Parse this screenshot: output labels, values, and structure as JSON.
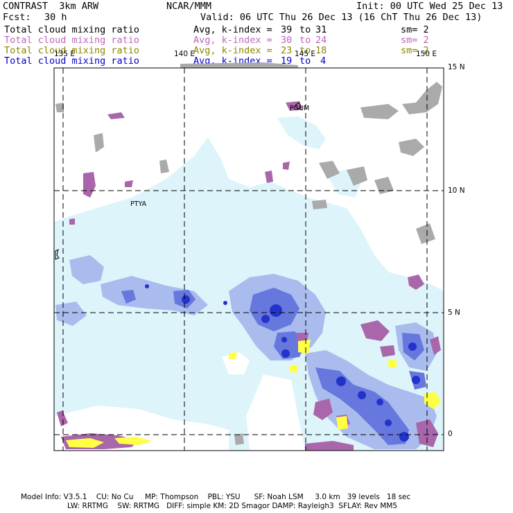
{
  "header": {
    "title": "CONTRAST  3km ARW",
    "org": "NCAR/MMM",
    "init": "Init: 00 UTC Wed 25 Dec 13",
    "fcst_label": "Fcst:",
    "fcst_value": "30 h",
    "valid": "Valid: 06 UTC Thu 26 Dec 13 (16 ChT Thu 26 Dec 13)"
  },
  "legend": [
    {
      "field": "Total cloud mixing ratio",
      "stat": "Avg, k-index =",
      "from": "39",
      "to_word": "to",
      "to": "31",
      "sm": "sm= 2",
      "color": "#000000"
    },
    {
      "field": "Total cloud mixing ratio",
      "stat": "Avg, k-index =",
      "from": "30",
      "to_word": "to",
      "to": "24",
      "sm": "sm= 2",
      "color": "#bb66bb"
    },
    {
      "field": "Total cloud mixing ratio",
      "stat": "Avg, k-index =",
      "from": "23",
      "to_word": "to",
      "to": "18",
      "sm": "sm= 2",
      "color": "#888800"
    },
    {
      "field": "Total cloud mixing ratio",
      "stat": "Avg, k-index =",
      "from": "19",
      "to_word": "to",
      "to": "4",
      "sm": "",
      "color": "#0000cc"
    }
  ],
  "map": {
    "lon_labels": [
      "135 E",
      "140 E",
      "145 E",
      "150 E"
    ],
    "lat_labels": [
      "15 N",
      "10 N",
      "5 N",
      "0"
    ],
    "place_labels": [
      "PGUM",
      "PTYA"
    ],
    "colors": {
      "gray": "#aaaaaa",
      "purple": "#aa66aa",
      "yellow": "#ffff44",
      "cyan_light": "#ddf4fa",
      "blue_light": "#aabbee",
      "blue_mid": "#6677dd",
      "blue_dark": "#2233cc"
    }
  },
  "footer": {
    "line1": "Model Info: V3.5.1    CU: No Cu     MP: Thompson    PBL: YSU      SF: Noah LSM     3.0 km   39 levels   18 sec",
    "line2": "LW: RRTMG    SW: RRTMG   DIFF: simple KM: 2D Smagor DAMP: Rayleigh3  SFLAY: Rev MM5"
  }
}
